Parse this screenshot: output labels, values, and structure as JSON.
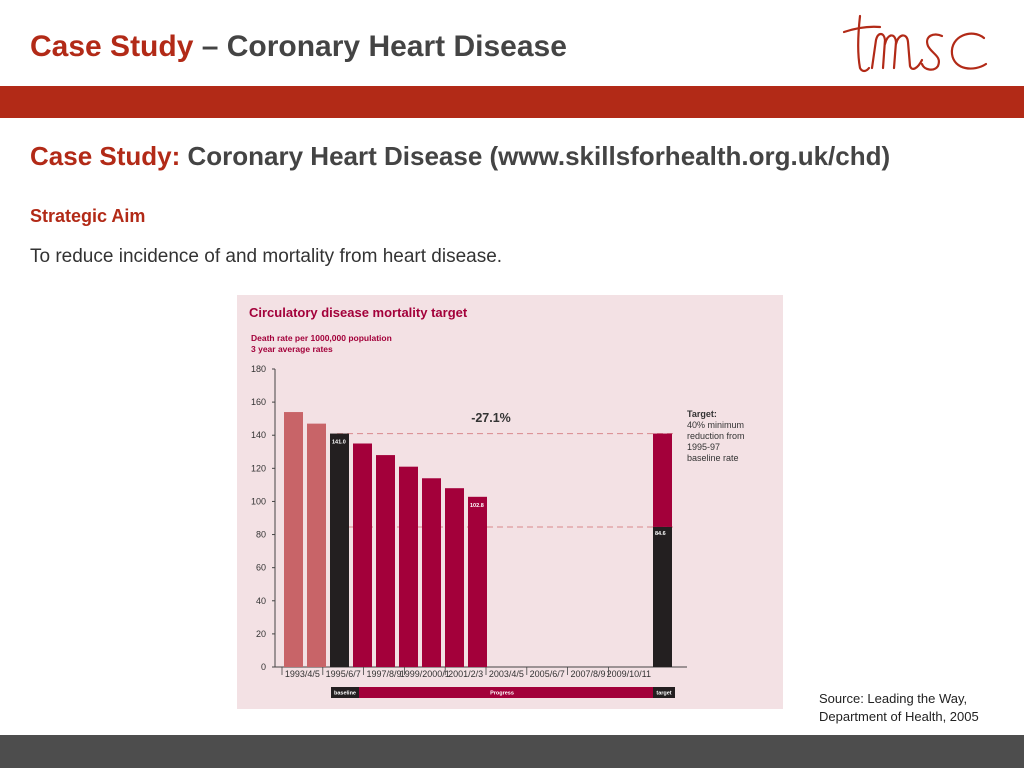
{
  "header": {
    "title_accent": "Case Study",
    "title_rest": " – Coronary Heart Disease",
    "logo_text": "tmsc"
  },
  "content": {
    "subtitle_accent": "Case Study:",
    "subtitle_rest": " Coronary Heart Disease (www.skillsforhealth.org.uk/chd)",
    "aim_heading": "Strategic Aim",
    "aim_text": "To reduce incidence of and mortality from heart disease."
  },
  "source": {
    "line1": "Source: Leading the Way,",
    "line2": "Department of Health, 2005"
  },
  "colors": {
    "accent": "#b22a17",
    "chart_bg": "#f3e1e4",
    "bar_light": "#c86468",
    "bar_dark": "#231f20",
    "bar_main": "#a3003a"
  },
  "chart_data": {
    "type": "bar",
    "title": "Circulatory disease mortality target",
    "ylabel_line1": "Death rate per 1000,000 population",
    "ylabel_line2": "3 year average rates",
    "ylim": [
      0,
      180
    ],
    "yticks": [
      0,
      20,
      40,
      60,
      80,
      100,
      120,
      140,
      160,
      180
    ],
    "categories": [
      "1993/4/5",
      "1995/6/7",
      "1997/8/9",
      "1999/2000/1",
      "2001/2/3",
      "2003/4/5",
      "2005/6/7",
      "2007/8/9",
      "2009/10/11"
    ],
    "bars": [
      {
        "value": 154,
        "style": "light",
        "label": ""
      },
      {
        "value": 147,
        "style": "light",
        "label": ""
      },
      {
        "value": 141.0,
        "style": "dark",
        "label": "141.0"
      },
      {
        "value": 135,
        "style": "main",
        "label": ""
      },
      {
        "value": 128,
        "style": "main",
        "label": ""
      },
      {
        "value": 121,
        "style": "main",
        "label": ""
      },
      {
        "value": 114,
        "style": "main",
        "label": ""
      },
      {
        "value": 108,
        "style": "main",
        "label": ""
      },
      {
        "value": 102.8,
        "style": "main",
        "label": "102.8"
      }
    ],
    "target_bar": {
      "total": 141.0,
      "value": 84.6,
      "label": "84.6"
    },
    "reference_lines": [
      141.0,
      84.6
    ],
    "change_label": "-27.1%",
    "target_note": [
      "Target:",
      "40% minimum",
      "reduction from",
      "1995-97",
      "baseline rate"
    ],
    "phases": {
      "baseline": "baseline",
      "progress": "Progress",
      "target": "target"
    }
  }
}
